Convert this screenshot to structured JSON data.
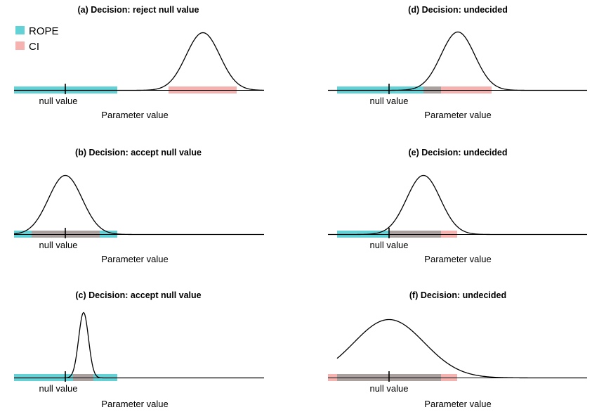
{
  "colors": {
    "rope": "#62d2d6",
    "ci": "#f6b2ae",
    "overlap": "#aaa19f",
    "curve": "#000000"
  },
  "legend": {
    "rope_label": "ROPE",
    "ci_label": "CI"
  },
  "panels": [
    {
      "id": "a",
      "title": "(a) Decision: reject null value",
      "null_label": "null value",
      "axis_label": "Parameter value"
    },
    {
      "id": "b",
      "title": "(b) Decision: accept null value",
      "null_label": "null value",
      "axis_label": "Parameter value"
    },
    {
      "id": "c",
      "title": "(c) Decision: accept null value",
      "null_label": "null value",
      "axis_label": "Parameter value"
    },
    {
      "id": "d",
      "title": "(d) Decision: undecided",
      "null_label": "null value",
      "axis_label": "Parameter value"
    },
    {
      "id": "e",
      "title": "(e) Decision: undecided",
      "null_label": "null value",
      "axis_label": "Parameter value"
    },
    {
      "id": "f",
      "title": "(f) Decision: undecided",
      "null_label": "null value",
      "axis_label": "Parameter value"
    }
  ]
}
